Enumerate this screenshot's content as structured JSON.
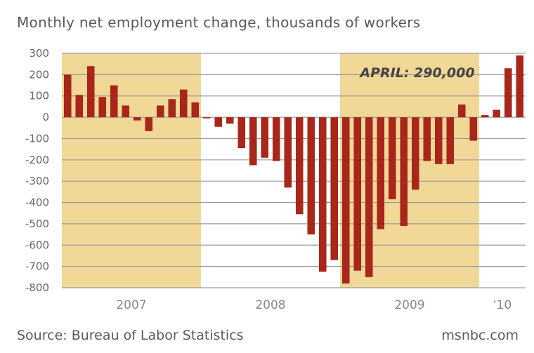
{
  "header": {
    "title": "Monthly net employment change, thousands of workers"
  },
  "footer": {
    "source": "Source: Bureau of Labor Statistics",
    "brand": "msnbc.com"
  },
  "colors": {
    "bar": "#a8271a",
    "band": "#f1d896",
    "grid": "#9a9a9a"
  },
  "chart_data": {
    "type": "bar",
    "ylim": [
      -800,
      300
    ],
    "yticks": [
      300,
      200,
      100,
      0,
      -100,
      -200,
      -300,
      -400,
      -500,
      -600,
      -700,
      -800
    ],
    "grid": true,
    "year_labels": [
      "2007",
      "2008",
      "2009",
      "'10"
    ],
    "categories": [
      "2007-01",
      "2007-02",
      "2007-03",
      "2007-04",
      "2007-05",
      "2007-06",
      "2007-07",
      "2007-08",
      "2007-09",
      "2007-10",
      "2007-11",
      "2007-12",
      "2008-01",
      "2008-02",
      "2008-03",
      "2008-04",
      "2008-05",
      "2008-06",
      "2008-07",
      "2008-08",
      "2008-09",
      "2008-10",
      "2008-11",
      "2008-12",
      "2009-01",
      "2009-02",
      "2009-03",
      "2009-04",
      "2009-05",
      "2009-06",
      "2009-07",
      "2009-08",
      "2009-09",
      "2009-10",
      "2009-11",
      "2009-12",
      "2010-01",
      "2010-02",
      "2010-03",
      "2010-04"
    ],
    "values": [
      200,
      105,
      240,
      95,
      150,
      55,
      -15,
      -65,
      55,
      85,
      130,
      70,
      -5,
      -45,
      -30,
      -145,
      -225,
      -190,
      -205,
      -330,
      -455,
      -550,
      -725,
      -670,
      -780,
      -720,
      -750,
      -525,
      -385,
      -510,
      -340,
      -205,
      -220,
      -220,
      60,
      -110,
      10,
      35,
      230,
      290
    ],
    "annotation": "APRIL: 290,000"
  }
}
